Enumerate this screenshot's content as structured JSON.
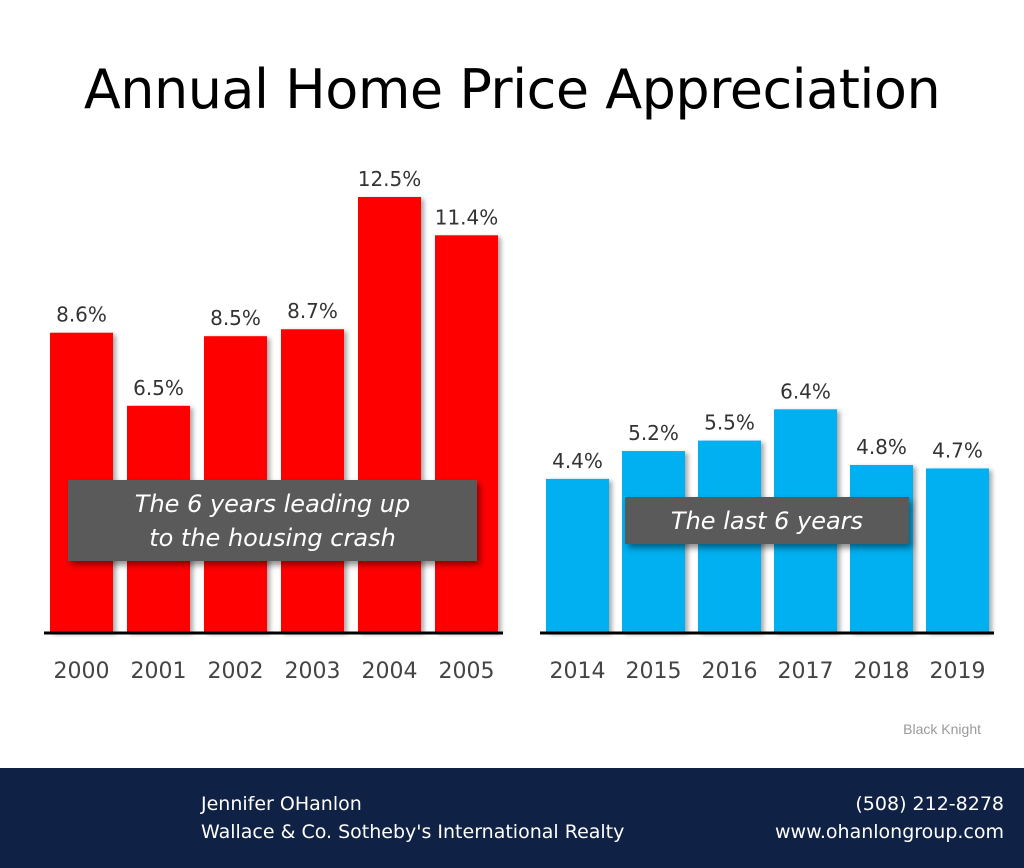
{
  "title": "Annual Home Price Appreciation",
  "chart_data": [
    {
      "type": "bar",
      "title": "The 6 years leading up to the housing crash",
      "categories": [
        "2000",
        "2001",
        "2002",
        "2003",
        "2004",
        "2005"
      ],
      "values": [
        8.6,
        6.5,
        8.5,
        8.7,
        12.5,
        11.4
      ],
      "value_labels": [
        "8.6%",
        "6.5%",
        "8.5%",
        "8.7%",
        "12.5%",
        "11.4%"
      ],
      "color": "#ff0000",
      "ylim": [
        0,
        13
      ]
    },
    {
      "type": "bar",
      "title": "The last 6 years",
      "categories": [
        "2014",
        "2015",
        "2016",
        "2017",
        "2018",
        "2019"
      ],
      "values": [
        4.4,
        5.2,
        5.5,
        6.4,
        4.8,
        4.7
      ],
      "value_labels": [
        "4.4%",
        "5.2%",
        "5.5%",
        "6.4%",
        "4.8%",
        "4.7%"
      ],
      "color": "#00b0f0",
      "ylim": [
        0,
        13
      ]
    }
  ],
  "annotations": {
    "left_line1": "The 6 years leading up",
    "left_line2": "to the housing crash",
    "right": "The last 6 years"
  },
  "source": "Black Knight",
  "footer": {
    "name": "Jennifer OHanlon",
    "company": "Wallace & Co. Sotheby's International Realty",
    "phone": "(508) 212-8278",
    "website": "www.ohanlongroup.com",
    "bg_color": "#0f2245"
  }
}
